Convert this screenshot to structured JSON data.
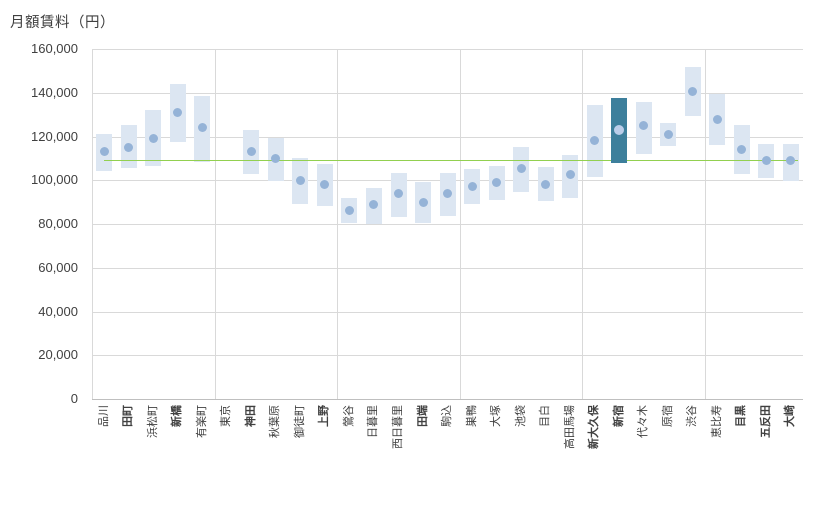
{
  "chart_data": {
    "type": "range-bar-with-median-dots",
    "title": "月額賃料（円）",
    "xlabel": "",
    "ylabel": "月額賃料（円）",
    "ylim": [
      0,
      160000
    ],
    "ytick_values": [
      0,
      20000,
      40000,
      60000,
      80000,
      100000,
      120000,
      140000,
      160000
    ],
    "ytick_labels": [
      "0",
      "20,000",
      "40,000",
      "60,000",
      "80,000",
      "100,000",
      "120,000",
      "140,000",
      "160,000"
    ],
    "x_gridline_every": 5,
    "grid": "on",
    "legend": "none",
    "reference_line": {
      "value": 109000,
      "description": "green average rent line across all stations"
    },
    "stations": [
      {
        "label": "品川",
        "min": 104000,
        "max": 121000,
        "mid": 113000
      },
      {
        "label": "田町",
        "min": 105500,
        "max": 125500,
        "mid": 115000,
        "bold": true
      },
      {
        "label": "浜松町",
        "min": 106500,
        "max": 132000,
        "mid": 119000
      },
      {
        "label": "新橋",
        "min": 117500,
        "max": 144000,
        "mid": 131000,
        "bold": true
      },
      {
        "label": "有楽町",
        "min": 108500,
        "max": 138500,
        "mid": 124000
      },
      {
        "label": "東京",
        "min": null,
        "max": null,
        "mid": null
      },
      {
        "label": "神田",
        "min": 103000,
        "max": 123000,
        "mid": 113000,
        "bold": true
      },
      {
        "label": "秋葉原",
        "min": 99500,
        "max": 119500,
        "mid": 110000
      },
      {
        "label": "御徒町",
        "min": 89000,
        "max": 110000,
        "mid": 100000
      },
      {
        "label": "上野",
        "min": 88000,
        "max": 107500,
        "mid": 98000,
        "bold": true
      },
      {
        "label": "鶯谷",
        "min": 80500,
        "max": 92000,
        "mid": 86000
      },
      {
        "label": "日暮里",
        "min": 80000,
        "max": 96500,
        "mid": 89000
      },
      {
        "label": "西日暮里",
        "min": 83000,
        "max": 103500,
        "mid": 94000
      },
      {
        "label": "田端",
        "min": 80500,
        "max": 99000,
        "mid": 90000,
        "bold": true
      },
      {
        "label": "駒込",
        "min": 83500,
        "max": 103500,
        "mid": 94000
      },
      {
        "label": "巣鴨",
        "min": 89000,
        "max": 105000,
        "mid": 97000
      },
      {
        "label": "大塚",
        "min": 91000,
        "max": 106500,
        "mid": 99000
      },
      {
        "label": "池袋",
        "min": 94500,
        "max": 115000,
        "mid": 105500
      },
      {
        "label": "目白",
        "min": 90500,
        "max": 106000,
        "mid": 98000
      },
      {
        "label": "高田馬場",
        "min": 92000,
        "max": 111500,
        "mid": 102500
      },
      {
        "label": "新大久保",
        "min": 101500,
        "max": 134500,
        "mid": 118000,
        "bold": true
      },
      {
        "label": "新宿",
        "min": 108000,
        "max": 137500,
        "mid": 123000,
        "highlight": true,
        "bold": true
      },
      {
        "label": "代々木",
        "min": 112000,
        "max": 136000,
        "mid": 125000
      },
      {
        "label": "原宿",
        "min": 115500,
        "max": 126000,
        "mid": 121000
      },
      {
        "label": "渋谷",
        "min": 129500,
        "max": 152000,
        "mid": 140500
      },
      {
        "label": "恵比寿",
        "min": 116000,
        "max": 139500,
        "mid": 128000
      },
      {
        "label": "目黒",
        "min": 103000,
        "max": 125500,
        "mid": 114000,
        "bold": true
      },
      {
        "label": "五反田",
        "min": 101000,
        "max": 116500,
        "mid": 109000,
        "bold": true
      },
      {
        "label": "大崎",
        "min": 99500,
        "max": 116500,
        "mid": 109000,
        "bold": true
      }
    ],
    "colors": {
      "bar": "#dce6f2",
      "dot": "#95b3d7",
      "highlight_bar": "#3d7f9c",
      "highlight_dot": "#bacde9",
      "reference_line": "#92d050",
      "gridline": "#d9d9d9",
      "axis_line": "#bfbfbf",
      "text": "#404040"
    }
  }
}
